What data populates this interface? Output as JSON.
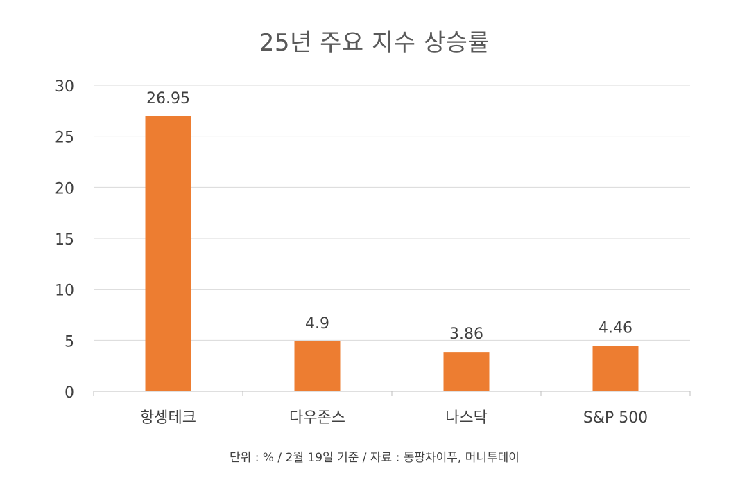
{
  "chart_data": {
    "type": "bar",
    "title": "25년 주요 지수 상승률",
    "categories": [
      "항셍테크",
      "다우존스",
      "나스닥",
      "S&P 500"
    ],
    "values": [
      26.95,
      4.9,
      3.86,
      4.46
    ],
    "data_labels": [
      "26.95",
      "4.9",
      "3.86",
      "4.46"
    ],
    "yticks": [
      "0",
      "5",
      "10",
      "15",
      "20",
      "25",
      "30"
    ],
    "ylim": [
      0,
      30
    ],
    "xlabel": "",
    "ylabel": "",
    "grid": true,
    "legend": "none",
    "colors": {
      "bar": "#ED7D31",
      "grid": "#D9D9D9",
      "axis": "#BFBFBF",
      "text": "#404040",
      "title": "#595959"
    }
  },
  "footnote": "단위 : % / 2월 19일 기준 / 자료 : 동팡차이푸, 머니투데이"
}
